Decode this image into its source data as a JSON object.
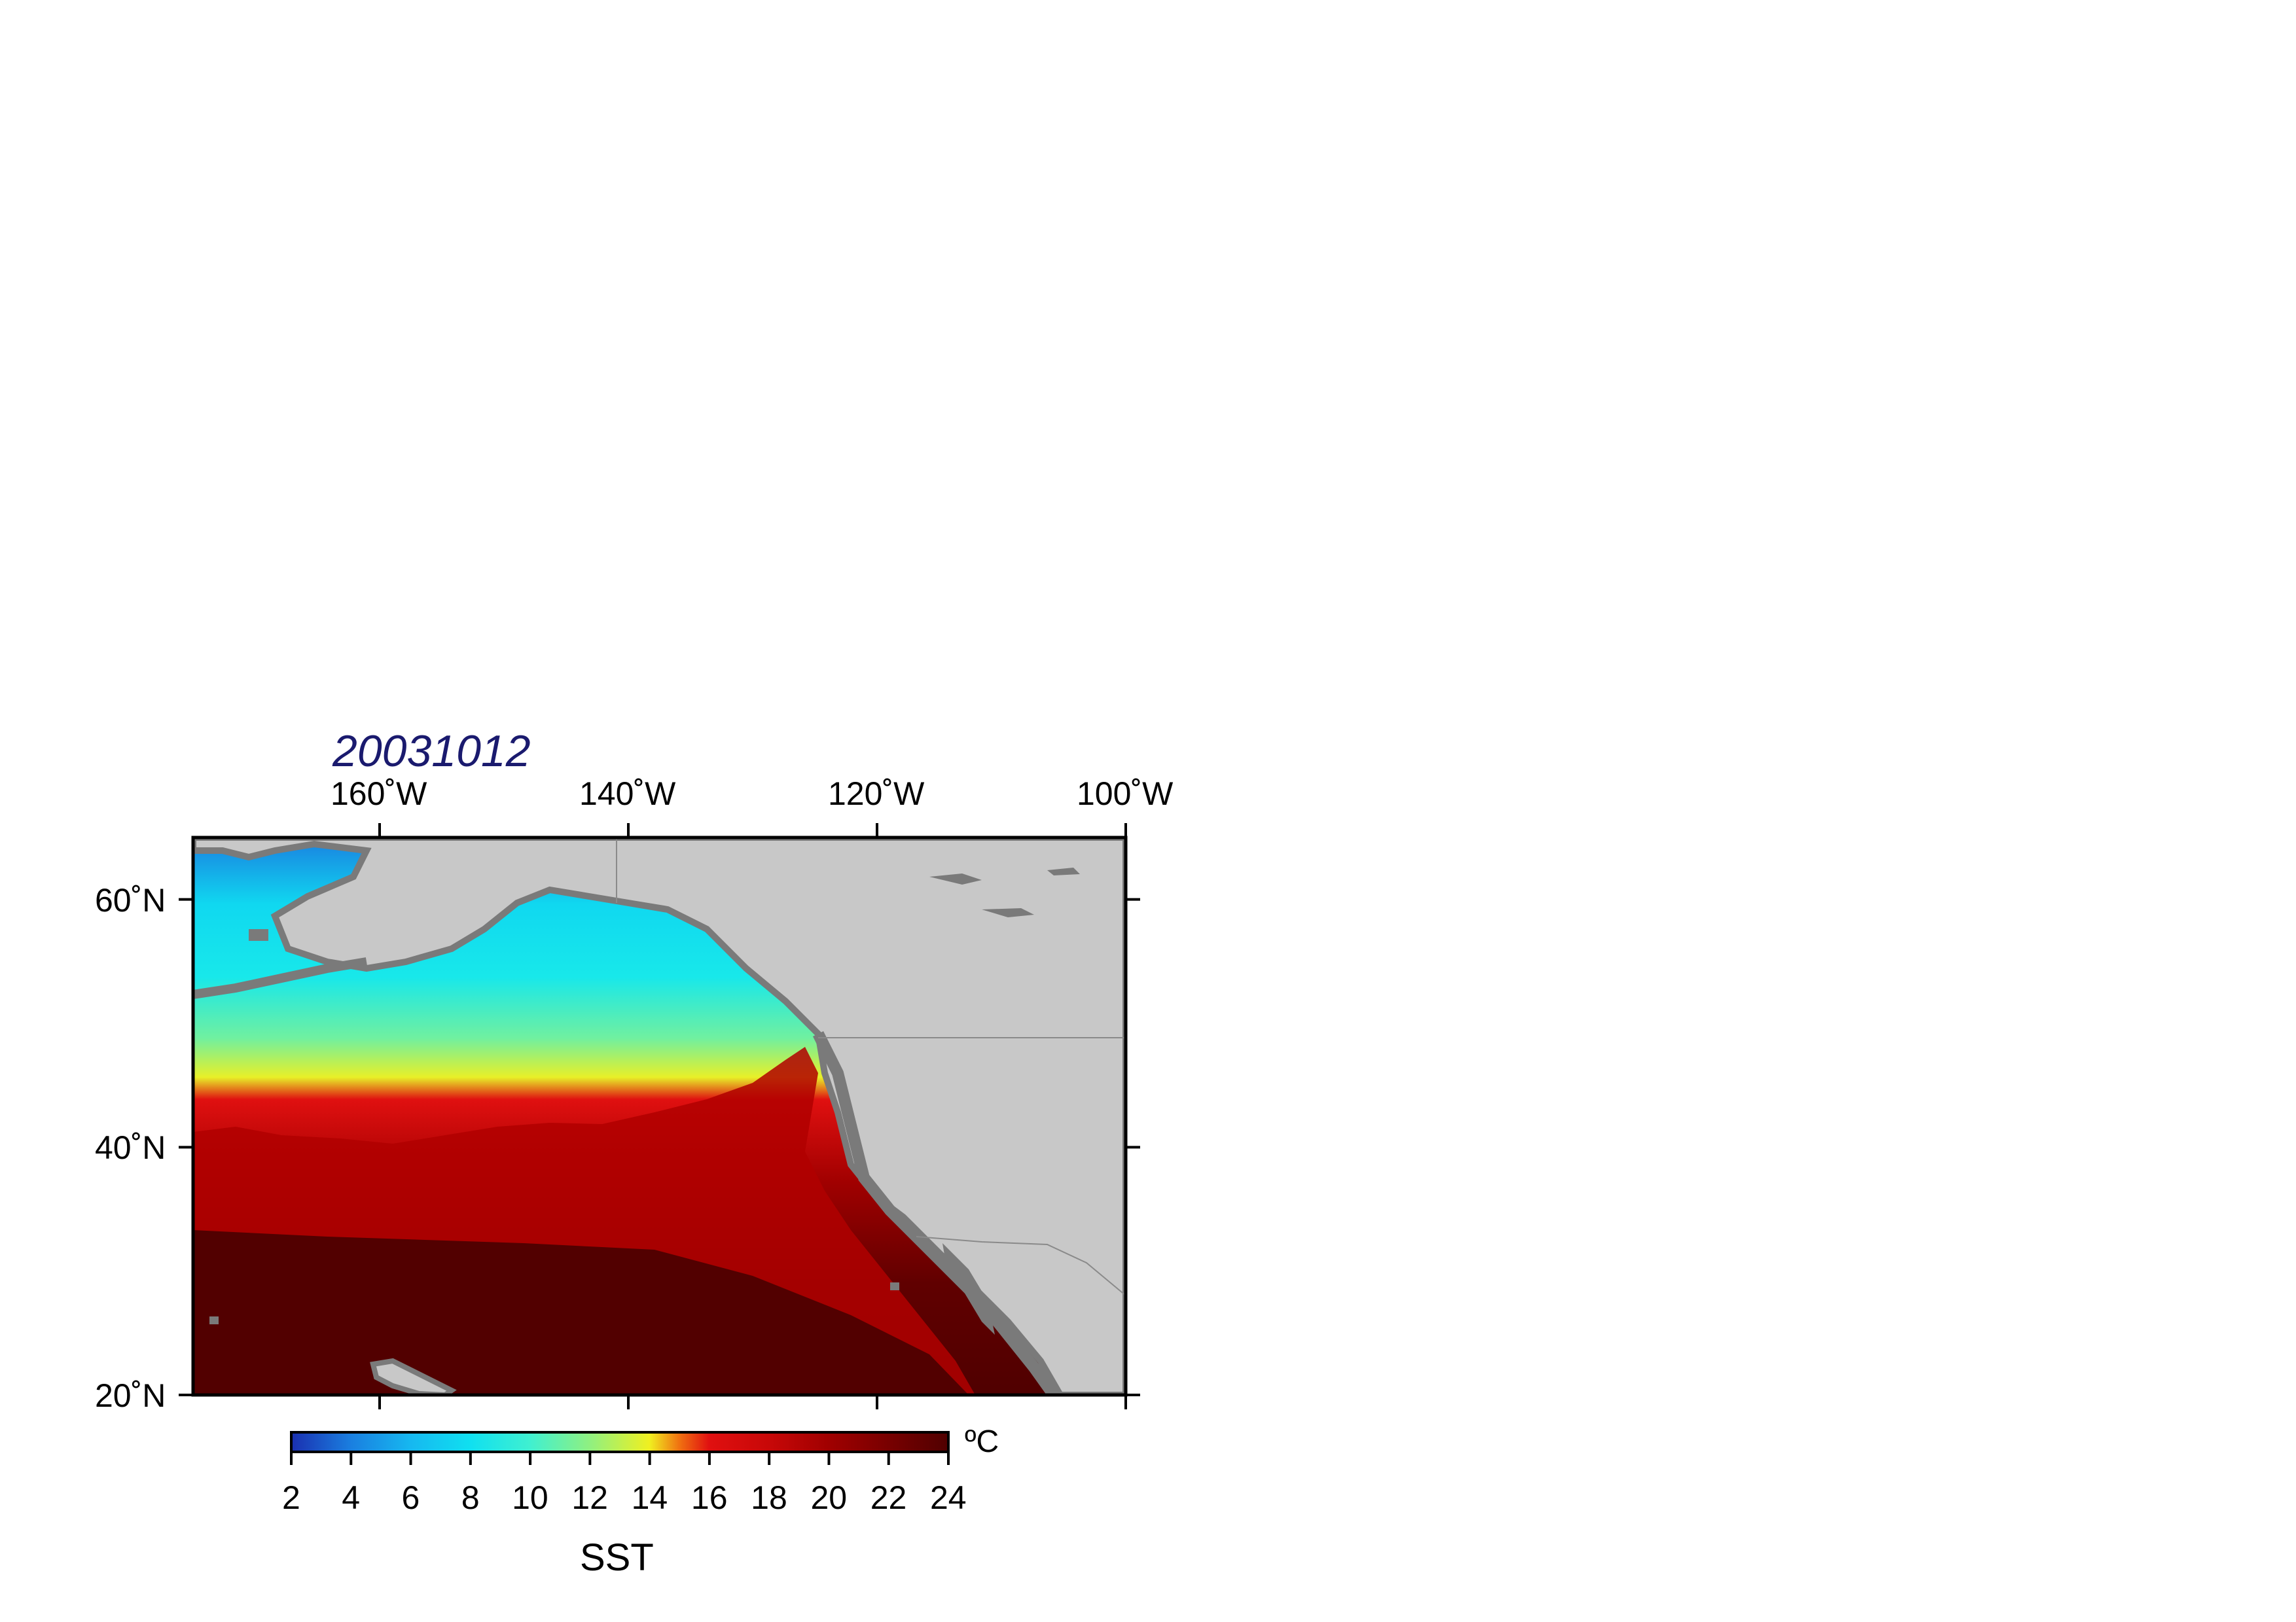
{
  "title": "20031012",
  "map": {
    "lon_range": [
      -175,
      -100
    ],
    "lat_range": [
      20,
      65
    ],
    "lon_ticks": [
      {
        "value": -160,
        "label": "160˚W"
      },
      {
        "value": -140,
        "label": "140˚W"
      },
      {
        "value": -120,
        "label": "120˚W"
      },
      {
        "value": -100,
        "label": "100˚W"
      }
    ],
    "lat_ticks": [
      {
        "value": 60,
        "label": "60˚N"
      },
      {
        "value": 40,
        "label": "40˚N"
      },
      {
        "value": 20,
        "label": "20˚N"
      }
    ],
    "colors": {
      "land": "#c8c8c8",
      "shelf": "#7a7a7a",
      "frame": "#000000"
    }
  },
  "colorbar": {
    "label": "SST",
    "unit": "ºC",
    "range": [
      2,
      24
    ],
    "ticks": [
      "2",
      "4",
      "6",
      "8",
      "10",
      "12",
      "14",
      "16",
      "18",
      "20",
      "22",
      "24"
    ],
    "stops": [
      {
        "value": 2,
        "color": "#1a2fb0"
      },
      {
        "value": 4,
        "color": "#1a7fe0"
      },
      {
        "value": 6,
        "color": "#16b8f0"
      },
      {
        "value": 8,
        "color": "#10e0f0"
      },
      {
        "value": 10,
        "color": "#40f0d0"
      },
      {
        "value": 12,
        "color": "#90f080"
      },
      {
        "value": 14,
        "color": "#f0f020"
      },
      {
        "value": 15,
        "color": "#f07010"
      },
      {
        "value": 16,
        "color": "#e01010"
      },
      {
        "value": 18,
        "color": "#c80808"
      },
      {
        "value": 20,
        "color": "#a00000"
      },
      {
        "value": 22,
        "color": "#780000"
      },
      {
        "value": 24,
        "color": "#500000"
      }
    ]
  }
}
